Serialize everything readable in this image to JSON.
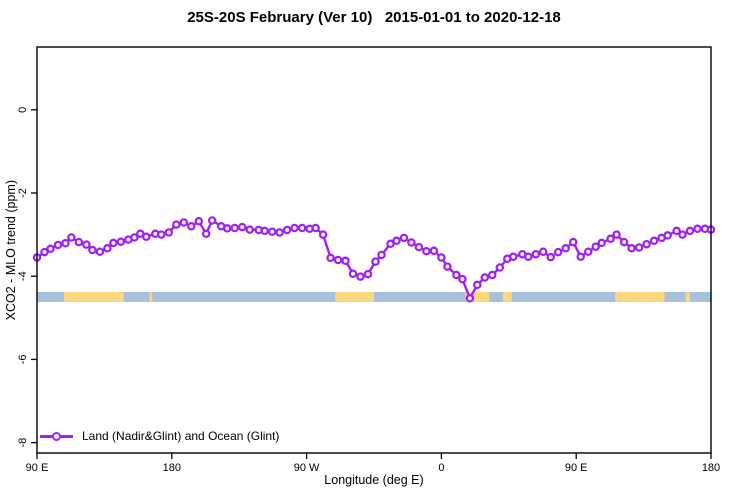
{
  "chart_data": {
    "type": "line",
    "title": "25S-20S February (Ver 10)   2015-01-01 to 2020-12-18",
    "xlabel": "Longitude (deg E)",
    "ylabel": "XCO2 - MLO trend (ppm)",
    "xlim_deg_east_extended": [
      90,
      540
    ],
    "ylim": [
      -8.25,
      1.51
    ],
    "grid": false,
    "x_ticks": [
      {
        "x": 90,
        "label": "90 E"
      },
      {
        "x": 180,
        "label": "180"
      },
      {
        "x": 270,
        "label": "90 W"
      },
      {
        "x": 360,
        "label": "0"
      },
      {
        "x": 450,
        "label": "90 E"
      },
      {
        "x": 540,
        "label": "180"
      }
    ],
    "y_ticks": [
      {
        "y": 0,
        "label": "0"
      },
      {
        "y": -2,
        "label": "-2"
      },
      {
        "y": -4,
        "label": "-4"
      },
      {
        "y": -6,
        "label": "-6"
      },
      {
        "y": -8,
        "label": "-8"
      }
    ],
    "legend": {
      "label": "Land (Nadir&Glint) and Ocean (Glint)",
      "position": "bottom-left",
      "marker": "open-circle-on-line"
    },
    "colors": {
      "series": "#A020F0",
      "marker_fill": "#ffffff",
      "ocean": "#A8BFDE",
      "land": "#FCD87E",
      "axis": "#000000"
    },
    "map_strip": {
      "description": "world-map strip of the 25S-20S latitude band (ocean blue, land yellow)",
      "y_band": [
        -4.38,
        -4.62
      ],
      "land_patches_lon": [
        [
          108,
          148
        ],
        [
          165,
          167
        ],
        [
          289,
          315
        ],
        [
          376,
          392
        ],
        [
          401,
          407
        ],
        [
          476,
          509
        ],
        [
          523,
          526
        ]
      ]
    },
    "series": [
      {
        "name": "Land (Nadir&Glint) and Ocean (Glint)",
        "marker": "open-circle",
        "x": [
          90,
          95,
          99,
          104,
          109,
          113,
          118,
          123,
          127,
          132,
          137,
          141,
          146,
          151,
          155,
          159,
          163,
          169,
          173,
          178,
          183,
          188,
          193,
          198,
          203,
          207,
          213,
          217,
          222,
          227,
          232,
          238,
          242,
          247,
          252,
          257,
          262,
          267,
          272,
          276,
          281,
          286,
          291,
          296,
          301,
          306,
          311,
          316,
          320,
          326,
          330,
          335,
          340,
          345,
          350,
          355,
          360,
          364,
          370,
          374,
          379,
          384,
          389,
          394,
          399,
          404,
          408,
          414,
          418,
          423,
          428,
          433,
          438,
          443,
          448,
          453,
          458,
          463,
          467,
          473,
          477,
          482,
          487,
          492,
          497,
          502,
          507,
          511,
          517,
          521,
          526,
          531,
          536,
          540
        ],
        "y": [
          -3.55,
          -3.42,
          -3.34,
          -3.25,
          -3.21,
          -3.07,
          -3.18,
          -3.24,
          -3.37,
          -3.41,
          -3.33,
          -3.2,
          -3.17,
          -3.12,
          -3.07,
          -2.98,
          -3.05,
          -2.98,
          -3.0,
          -2.95,
          -2.76,
          -2.71,
          -2.8,
          -2.68,
          -2.98,
          -2.66,
          -2.8,
          -2.85,
          -2.84,
          -2.82,
          -2.88,
          -2.89,
          -2.91,
          -2.93,
          -2.95,
          -2.89,
          -2.84,
          -2.84,
          -2.86,
          -2.84,
          -3.0,
          -3.56,
          -3.61,
          -3.63,
          -3.94,
          -4.01,
          -3.95,
          -3.65,
          -3.49,
          -3.22,
          -3.15,
          -3.08,
          -3.19,
          -3.3,
          -3.4,
          -3.39,
          -3.55,
          -3.77,
          -3.97,
          -4.07,
          -4.53,
          -4.21,
          -4.03,
          -3.97,
          -3.79,
          -3.58,
          -3.53,
          -3.47,
          -3.53,
          -3.47,
          -3.41,
          -3.54,
          -3.42,
          -3.33,
          -3.18,
          -3.53,
          -3.41,
          -3.29,
          -3.2,
          -3.1,
          -3.0,
          -3.18,
          -3.33,
          -3.31,
          -3.23,
          -3.15,
          -3.08,
          -3.02,
          -2.91,
          -3.0,
          -2.91,
          -2.86,
          -2.86,
          -2.88
        ]
      }
    ]
  }
}
